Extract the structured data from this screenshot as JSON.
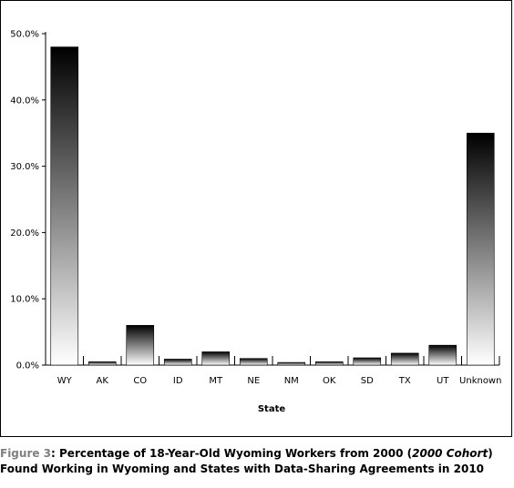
{
  "chart_data": {
    "type": "bar",
    "xlabel": "State",
    "ylabel": "",
    "categories": [
      "WY",
      "AK",
      "CO",
      "ID",
      "MT",
      "NE",
      "NM",
      "OK",
      "SD",
      "TX",
      "UT",
      "Unknown"
    ],
    "values": [
      48.0,
      0.5,
      6.0,
      0.9,
      2.0,
      1.0,
      0.4,
      0.5,
      1.1,
      1.8,
      3.0,
      35.0
    ],
    "ylim": [
      0,
      50
    ],
    "yticks": [
      "0.0%",
      "10.0%",
      "20.0%",
      "30.0%",
      "40.0%",
      "50.0%"
    ],
    "grid": false,
    "bar_gradient": [
      "#000000",
      "#ffffff"
    ]
  },
  "caption": {
    "label": "Figure 3",
    "text_part1": ": Percentage of 18-Year-Old Wyoming Workers from 2000 (",
    "italic": "2000 Cohort",
    "text_part2": ")",
    "line2": "Found Working in Wyoming and States with Data-Sharing Agreements in 2010"
  }
}
